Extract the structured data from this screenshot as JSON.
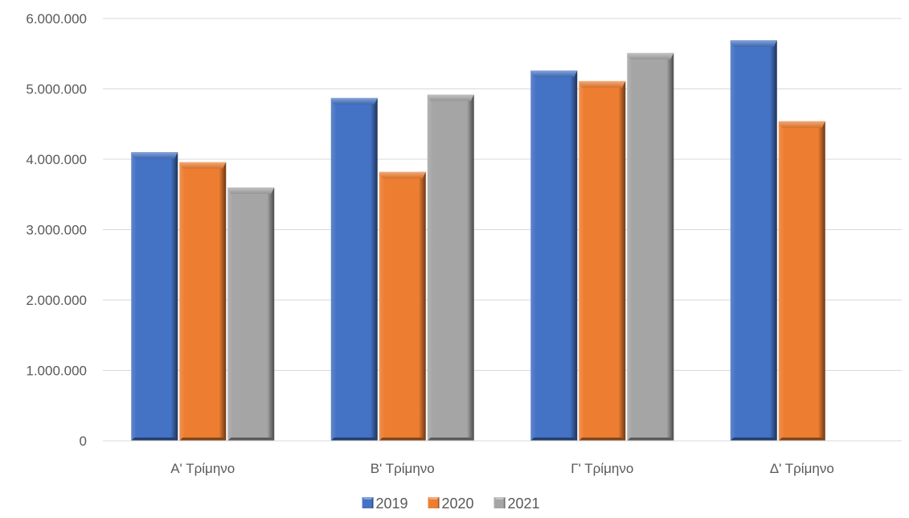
{
  "chart_data": {
    "type": "bar",
    "title": "",
    "xlabel": "",
    "ylabel": "",
    "categories": [
      "Α' Τρίμηνο",
      "Β' Τρίμηνο",
      "Γ' Τρίμηνο",
      "Δ' Τρίμηνο"
    ],
    "series": [
      {
        "name": "2019",
        "color": "#4472C4",
        "values": [
          4100000,
          4870000,
          5260000,
          5690000
        ]
      },
      {
        "name": "2020",
        "color": "#ED7D31",
        "values": [
          3960000,
          3820000,
          5110000,
          4540000
        ]
      },
      {
        "name": "2021",
        "color": "#A5A5A5",
        "values": [
          3600000,
          4920000,
          5510000,
          null
        ]
      }
    ],
    "ylim": [
      0,
      6000000
    ],
    "yticks": [
      0,
      1000000,
      2000000,
      3000000,
      4000000,
      5000000,
      6000000
    ],
    "ytick_labels": [
      "0",
      "1.000.000",
      "2.000.000",
      "3.000.000",
      "4.000.000",
      "5.000.000",
      "6.000.000"
    ],
    "grid": true,
    "legend_position": "bottom"
  }
}
